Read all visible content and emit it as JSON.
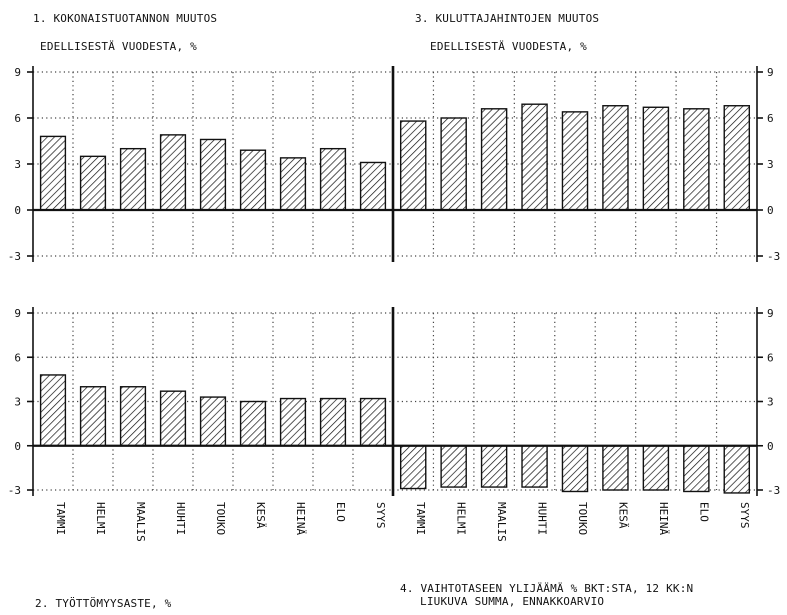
{
  "titles": {
    "chart1_line1": "1. KOKONAISTUOTANNON MUUTOS",
    "chart1_line2": "EDELLISESTÄ VUODESTA, %",
    "chart3_line1": "3. KULUTTAJAHINTOJEN MUUTOS",
    "chart3_line2": "EDELLISESTÄ VUODESTA, %",
    "chart2_line1": "2. TYÖTTÖMYYSASTE, %",
    "chart4_line1": "4. VAIHTOTASEEN YLIJÄÄMÄ % BKT:STA, 12 KK:N",
    "chart4_line2": "LIUKUVA SUMMA, ENNAKKOARVIO"
  },
  "chart_data": [
    {
      "id": "chart1",
      "type": "bar",
      "title": "1. KOKONAISTUOTANNON MUUTOS EDELLISESTÄ VUODESTA, %",
      "categories": [
        "TAMMI",
        "HELMI",
        "MAALIS",
        "HUHTI",
        "TOUKO",
        "KESÄ",
        "HEINÄ",
        "ELO",
        "SYYS"
      ],
      "values": [
        4.8,
        3.5,
        4.0,
        4.9,
        4.6,
        3.9,
        3.4,
        4.0,
        3.1
      ],
      "ylim": [
        -3,
        9
      ],
      "yticks": [
        -3,
        0,
        3,
        6,
        9
      ],
      "grid": true
    },
    {
      "id": "chart3",
      "type": "bar",
      "title": "3. KULUTTAJAHINTOJEN MUUTOS EDELLISESTÄ VUODESTA, %",
      "categories": [
        "TAMMI",
        "HELMI",
        "MAALIS",
        "HUHTI",
        "TOUKO",
        "KESÄ",
        "HEINÄ",
        "ELO",
        "SYYS"
      ],
      "values": [
        5.8,
        6.0,
        6.6,
        6.9,
        6.4,
        6.8,
        6.7,
        6.6,
        6.8
      ],
      "ylim": [
        -3,
        9
      ],
      "yticks": [
        -3,
        0,
        3,
        6,
        9
      ],
      "grid": true
    },
    {
      "id": "chart2",
      "type": "bar",
      "title": "2. TYÖTTÖMYYSASTE, %",
      "categories": [
        "TAMMI",
        "HELMI",
        "MAALIS",
        "HUHTI",
        "TOUKO",
        "KESÄ",
        "HEINÄ",
        "ELO",
        "SYYS"
      ],
      "values": [
        4.8,
        4.0,
        4.0,
        3.7,
        3.3,
        3.0,
        3.2,
        3.2,
        3.2
      ],
      "ylim": [
        -3,
        9
      ],
      "yticks": [
        -3,
        0,
        3,
        6,
        9
      ],
      "grid": true
    },
    {
      "id": "chart4",
      "type": "bar",
      "title": "4. VAIHTOTASEEN YLIJÄÄMÄ % BKT:STA, 12 KK:N LIUKUVA SUMMA, ENNAKKOARVIO",
      "categories": [
        "TAMMI",
        "HELMI",
        "MAALIS",
        "HUHTI",
        "TOUKO",
        "KESÄ",
        "HEINÄ",
        "ELO",
        "SYYS"
      ],
      "values": [
        -2.9,
        -2.8,
        -2.8,
        -2.8,
        -3.1,
        -3.0,
        -3.0,
        -3.1,
        -3.2
      ],
      "ylim": [
        -3,
        9
      ],
      "yticks": [
        -3,
        0,
        3,
        6,
        9
      ],
      "grid": true
    }
  ]
}
